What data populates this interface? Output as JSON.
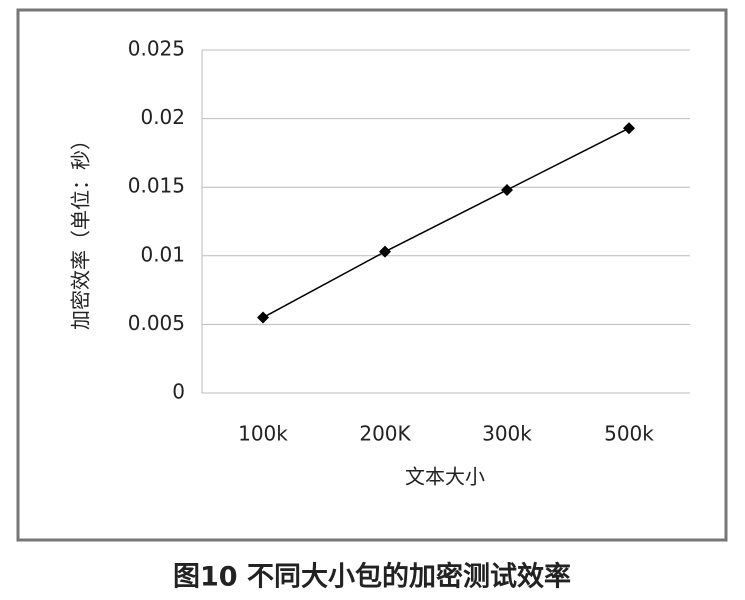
{
  "chart_data": {
    "type": "line",
    "caption": "图10 不同大小包的加密测试效率",
    "x_label": "文本大小",
    "y_label": "加密效率（单位：秒）",
    "categories": [
      "100k",
      "200K",
      "300k",
      "500k"
    ],
    "values": [
      0.0055,
      0.0103,
      0.0148,
      0.0193
    ],
    "color": "#000000",
    "ylim": [
      0,
      0.025
    ],
    "yticks": [
      0,
      0.005,
      0.01,
      0.015,
      0.02,
      0.025
    ],
    "grid": true
  }
}
